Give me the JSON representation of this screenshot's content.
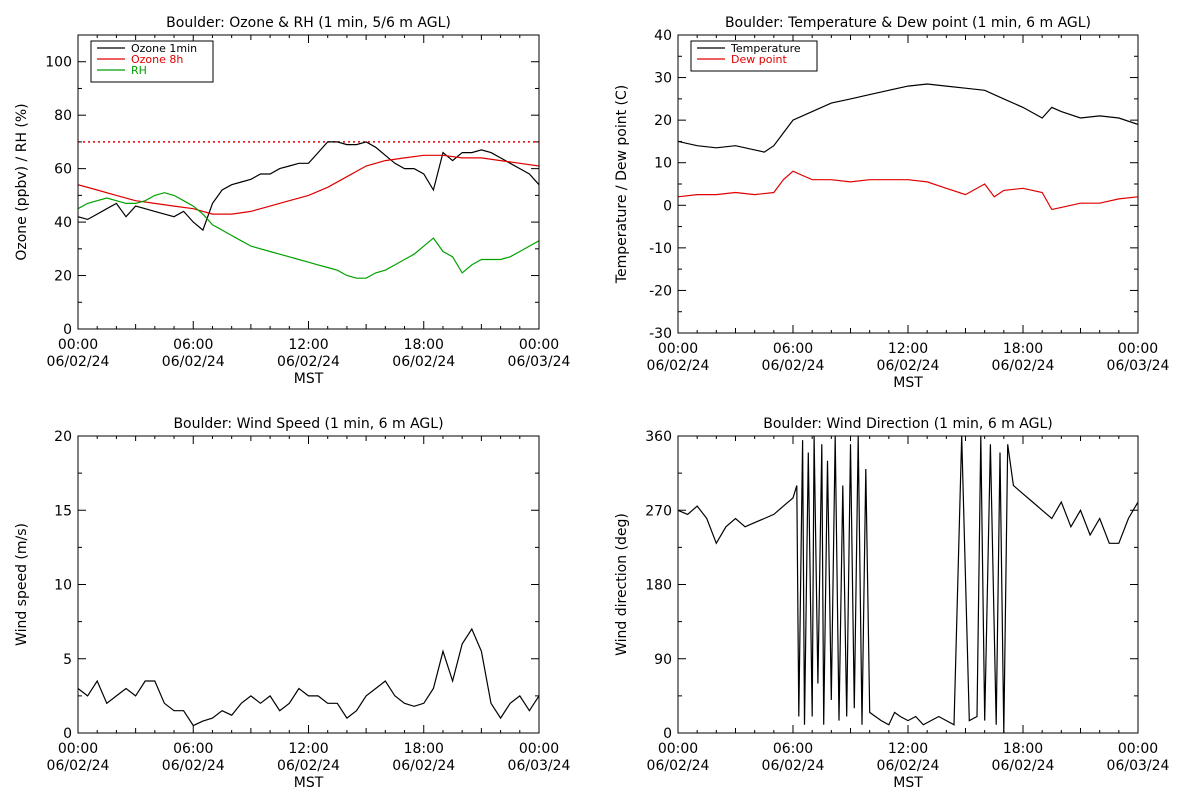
{
  "chart_data": [
    {
      "id": "ozone_rh",
      "type": "line",
      "title": "Boulder: Ozone & RH (1 min, 5/6 m AGL)",
      "xlabel": "MST",
      "ylabel": "Ozone (ppbv) / RH (%)",
      "ylim": [
        0,
        110
      ],
      "yticks": [
        0,
        20,
        40,
        60,
        80,
        100
      ],
      "xlim": [
        0,
        24
      ],
      "xticks": [
        {
          "t": 0,
          "time": "00:00",
          "date": "06/02/24"
        },
        {
          "t": 6,
          "time": "06:00",
          "date": "06/02/24"
        },
        {
          "t": 12,
          "time": "12:00",
          "date": "06/02/24"
        },
        {
          "t": 18,
          "time": "18:00",
          "date": "06/02/24"
        },
        {
          "t": 24,
          "time": "00:00",
          "date": "06/03/24"
        }
      ],
      "legend_position": "top-left",
      "reference_line": {
        "y": 70,
        "color": "#e00000",
        "style": "dotted"
      },
      "series": [
        {
          "name": "Ozone 1min",
          "color": "#000000",
          "x": [
            0,
            0.5,
            1,
            1.5,
            2,
            2.5,
            3,
            3.5,
            4,
            4.5,
            5,
            5.5,
            6,
            6.5,
            7,
            7.5,
            8,
            8.5,
            9,
            9.5,
            10,
            10.5,
            11,
            11.5,
            12,
            12.5,
            13,
            13.5,
            14,
            14.5,
            15,
            15.5,
            16,
            16.5,
            17,
            17.5,
            18,
            18.5,
            19,
            19.5,
            20,
            20.5,
            21,
            21.5,
            22,
            22.5,
            23,
            23.5,
            24
          ],
          "y": [
            42,
            41,
            43,
            45,
            47,
            42,
            46,
            45,
            44,
            43,
            42,
            44,
            40,
            37,
            47,
            52,
            54,
            55,
            56,
            58,
            58,
            60,
            61,
            62,
            62,
            66,
            70,
            70,
            69,
            69,
            70,
            68,
            65,
            62,
            60,
            60,
            58,
            52,
            66,
            63,
            66,
            66,
            67,
            66,
            64,
            62,
            60,
            58,
            54
          ]
        },
        {
          "name": "Ozone 8h",
          "color": "#e00000",
          "x": [
            0,
            1,
            2,
            3,
            4,
            5,
            6,
            7,
            8,
            9,
            10,
            11,
            12,
            13,
            14,
            15,
            16,
            17,
            18,
            19,
            20,
            21,
            22,
            23,
            24
          ],
          "y": [
            54,
            52,
            50,
            48,
            47,
            46,
            45,
            43,
            43,
            44,
            46,
            48,
            50,
            53,
            57,
            61,
            63,
            64,
            65,
            65,
            64,
            64,
            63,
            62,
            61
          ]
        },
        {
          "name": "RH",
          "color": "#00a000",
          "x": [
            0,
            0.5,
            1,
            1.5,
            2,
            2.5,
            3,
            3.5,
            4,
            4.5,
            5,
            5.5,
            6,
            6.5,
            7,
            7.5,
            8,
            8.5,
            9,
            9.5,
            10,
            10.5,
            11,
            11.5,
            12,
            12.5,
            13,
            13.5,
            14,
            14.5,
            15,
            15.5,
            16,
            16.5,
            17,
            17.5,
            18,
            18.5,
            19,
            19.5,
            20,
            20.5,
            21,
            21.5,
            22,
            22.5,
            23,
            23.5,
            24
          ],
          "y": [
            45,
            47,
            48,
            49,
            48,
            47,
            47,
            48,
            50,
            51,
            50,
            48,
            46,
            43,
            39,
            37,
            35,
            33,
            31,
            30,
            29,
            28,
            27,
            26,
            25,
            24,
            23,
            22,
            20,
            19,
            19,
            21,
            22,
            24,
            26,
            28,
            31,
            34,
            29,
            27,
            21,
            24,
            26,
            26,
            26,
            27,
            29,
            31,
            33
          ]
        }
      ]
    },
    {
      "id": "temp_dew",
      "type": "line",
      "title": "Boulder: Temperature & Dew point (1 min, 6 m AGL)",
      "xlabel": "MST",
      "ylabel": "Temperature / Dew point (C)",
      "ylim": [
        -30,
        40
      ],
      "yticks": [
        -30,
        -20,
        -10,
        0,
        10,
        20,
        30,
        40
      ],
      "xlim": [
        0,
        24
      ],
      "xticks": [
        {
          "t": 0,
          "time": "00:00",
          "date": "06/02/24"
        },
        {
          "t": 6,
          "time": "06:00",
          "date": "06/02/24"
        },
        {
          "t": 12,
          "time": "12:00",
          "date": "06/02/24"
        },
        {
          "t": 18,
          "time": "18:00",
          "date": "06/02/24"
        },
        {
          "t": 24,
          "time": "00:00",
          "date": "06/03/24"
        }
      ],
      "legend_position": "top-left",
      "series": [
        {
          "name": "Temperature",
          "color": "#000000",
          "x": [
            0,
            1,
            2,
            3,
            4,
            4.5,
            5,
            5.5,
            6,
            7,
            8,
            9,
            10,
            11,
            12,
            13,
            14,
            15,
            16,
            17,
            18,
            19,
            19.5,
            20,
            21,
            22,
            23,
            24
          ],
          "y": [
            15,
            14,
            13.5,
            14,
            13,
            12.5,
            14,
            17,
            20,
            22,
            24,
            25,
            26,
            27,
            28,
            28.5,
            28,
            27.5,
            27,
            25,
            23,
            20.5,
            23,
            22,
            20.5,
            21,
            20.5,
            19
          ]
        },
        {
          "name": "Dew point",
          "color": "#e00000",
          "x": [
            0,
            1,
            2,
            3,
            4,
            5,
            5.5,
            6,
            6.5,
            7,
            8,
            9,
            10,
            11,
            12,
            13,
            14,
            15,
            16,
            16.5,
            17,
            18,
            19,
            19.5,
            20,
            21,
            22,
            23,
            24
          ],
          "y": [
            2,
            2.5,
            2.5,
            3,
            2.5,
            3,
            6,
            8,
            7,
            6,
            6,
            5.5,
            6,
            6,
            6,
            5.5,
            4,
            2.5,
            5,
            2,
            3.5,
            4,
            3,
            -1,
            -0.5,
            0.5,
            0.5,
            1.5,
            2
          ]
        }
      ]
    },
    {
      "id": "wind_speed",
      "type": "line",
      "title": "Boulder: Wind Speed (1 min, 6 m AGL)",
      "xlabel": "MST",
      "ylabel": "Wind speed (m/s)",
      "ylim": [
        0,
        20
      ],
      "yticks": [
        0,
        5,
        10,
        15,
        20
      ],
      "xlim": [
        0,
        24
      ],
      "xticks": [
        {
          "t": 0,
          "time": "00:00",
          "date": "06/02/24"
        },
        {
          "t": 6,
          "time": "06:00",
          "date": "06/02/24"
        },
        {
          "t": 12,
          "time": "12:00",
          "date": "06/02/24"
        },
        {
          "t": 18,
          "time": "18:00",
          "date": "06/02/24"
        },
        {
          "t": 24,
          "time": "00:00",
          "date": "06/03/24"
        }
      ],
      "series": [
        {
          "color": "#000000",
          "x": [
            0,
            0.5,
            1,
            1.5,
            2,
            2.5,
            3,
            3.5,
            4,
            4.5,
            5,
            5.5,
            6,
            6.5,
            7,
            7.5,
            8,
            8.5,
            9,
            9.5,
            10,
            10.5,
            11,
            11.5,
            12,
            12.5,
            13,
            13.5,
            14,
            14.5,
            15,
            15.5,
            16,
            16.5,
            17,
            17.5,
            18,
            18.5,
            19,
            19.5,
            20,
            20.5,
            21,
            21.5,
            22,
            22.5,
            23,
            23.5,
            24
          ],
          "y": [
            3,
            2.5,
            3.5,
            2,
            2.5,
            3,
            2.5,
            3.5,
            3.5,
            2,
            1.5,
            1.5,
            0.5,
            0.8,
            1,
            1.5,
            1.2,
            2,
            2.5,
            2,
            2.5,
            1.5,
            2,
            3,
            2.5,
            2.5,
            2,
            2,
            1,
            1.5,
            2.5,
            3,
            3.5,
            2.5,
            2,
            1.8,
            2,
            3,
            5.5,
            3.5,
            6,
            7,
            5.5,
            2,
            1,
            2,
            2.5,
            1.5,
            2.5
          ]
        }
      ]
    },
    {
      "id": "wind_dir",
      "type": "line",
      "title": "Boulder: Wind Direction (1 min, 6 m AGL)",
      "xlabel": "MST",
      "ylabel": "Wind direction (deg)",
      "ylim": [
        0,
        360
      ],
      "yticks": [
        0,
        90,
        180,
        270,
        360
      ],
      "xlim": [
        0,
        24
      ],
      "xticks": [
        {
          "t": 0,
          "time": "00:00",
          "date": "06/02/24"
        },
        {
          "t": 6,
          "time": "06:00",
          "date": "06/02/24"
        },
        {
          "t": 12,
          "time": "12:00",
          "date": "06/02/24"
        },
        {
          "t": 18,
          "time": "18:00",
          "date": "06/02/24"
        },
        {
          "t": 24,
          "time": "00:00",
          "date": "06/03/24"
        }
      ],
      "series": [
        {
          "color": "#000000",
          "x": [
            0,
            0.5,
            1,
            1.5,
            2,
            2.5,
            3,
            3.5,
            4,
            4.5,
            5,
            5.5,
            6,
            6.2,
            6.3,
            6.5,
            6.6,
            6.8,
            7,
            7.1,
            7.3,
            7.5,
            7.6,
            7.8,
            8,
            8.2,
            8.4,
            8.6,
            8.8,
            9,
            9.2,
            9.4,
            9.6,
            9.8,
            10,
            10.3,
            10.6,
            11,
            11.3,
            11.6,
            12,
            12.4,
            12.8,
            13.2,
            13.6,
            14,
            14.4,
            14.8,
            15.2,
            15.6,
            15.8,
            16,
            16.3,
            16.6,
            16.8,
            17,
            17.2,
            17.5,
            18,
            18.5,
            19,
            19.5,
            20,
            20.5,
            21,
            21.5,
            22,
            22.5,
            23,
            23.5,
            24
          ],
          "y": [
            270,
            265,
            275,
            260,
            230,
            250,
            260,
            250,
            255,
            260,
            265,
            275,
            285,
            300,
            20,
            355,
            10,
            340,
            20,
            360,
            60,
            350,
            10,
            330,
            40,
            360,
            15,
            300,
            20,
            350,
            30,
            360,
            10,
            320,
            25,
            20,
            15,
            10,
            25,
            20,
            15,
            20,
            10,
            15,
            20,
            15,
            10,
            360,
            15,
            20,
            360,
            15,
            350,
            10,
            340,
            0,
            350,
            300,
            290,
            280,
            270,
            260,
            280,
            250,
            270,
            240,
            260,
            230,
            230,
            260,
            280
          ]
        }
      ]
    }
  ]
}
